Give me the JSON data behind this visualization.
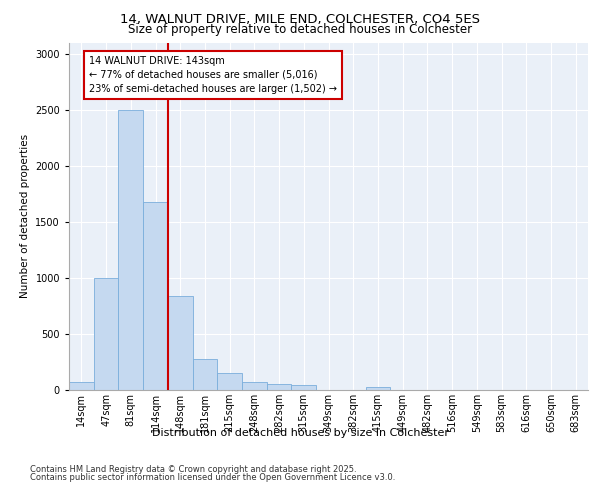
{
  "title_line1": "14, WALNUT DRIVE, MILE END, COLCHESTER, CO4 5ES",
  "title_line2": "Size of property relative to detached houses in Colchester",
  "xlabel": "Distribution of detached houses by size in Colchester",
  "ylabel": "Number of detached properties",
  "categories": [
    "14sqm",
    "47sqm",
    "81sqm",
    "114sqm",
    "148sqm",
    "181sqm",
    "215sqm",
    "248sqm",
    "282sqm",
    "315sqm",
    "349sqm",
    "382sqm",
    "415sqm",
    "449sqm",
    "482sqm",
    "516sqm",
    "549sqm",
    "583sqm",
    "616sqm",
    "650sqm",
    "683sqm"
  ],
  "values": [
    75,
    1000,
    2500,
    1680,
    840,
    280,
    155,
    75,
    50,
    45,
    0,
    0,
    25,
    0,
    0,
    0,
    0,
    0,
    0,
    0,
    0
  ],
  "bar_color": "#c5d9f0",
  "bar_edge_color": "#7aaedc",
  "vline_color": "#cc0000",
  "annotation_text": "14 WALNUT DRIVE: 143sqm\n← 77% of detached houses are smaller (5,016)\n23% of semi-detached houses are larger (1,502) →",
  "annotation_box_color": "#ffffff",
  "annotation_box_edge_color": "#cc0000",
  "ylim": [
    0,
    3100
  ],
  "yticks": [
    0,
    500,
    1000,
    1500,
    2000,
    2500,
    3000
  ],
  "footer_line1": "Contains HM Land Registry data © Crown copyright and database right 2025.",
  "footer_line2": "Contains public sector information licensed under the Open Government Licence v3.0.",
  "bg_color": "#eaf0f8",
  "fig_bg_color": "#ffffff",
  "title1_fontsize": 9.5,
  "title2_fontsize": 8.5,
  "ylabel_fontsize": 7.5,
  "xlabel_fontsize": 8,
  "tick_fontsize": 7,
  "annotation_fontsize": 7,
  "footer_fontsize": 6
}
